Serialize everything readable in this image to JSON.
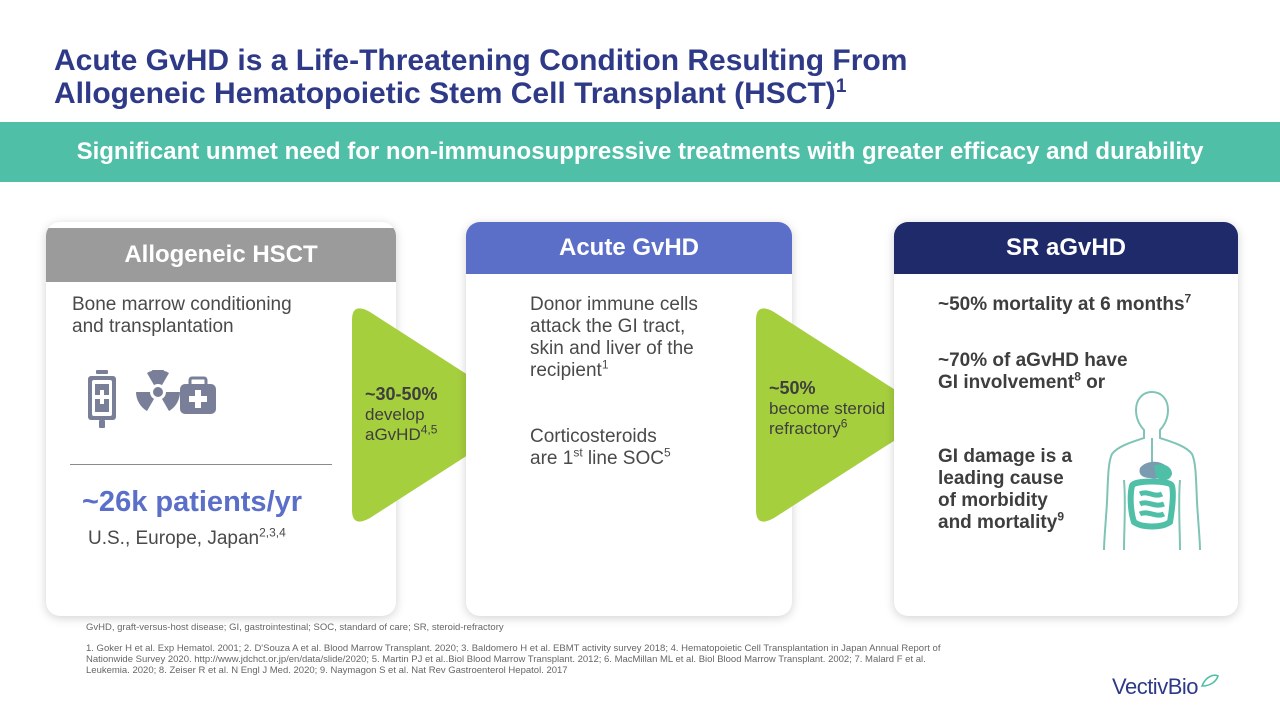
{
  "title": {
    "line1": "Acute GvHD is a Life-Threatening Condition Resulting From",
    "line2": "Allogeneic Hematopoietic Stem Cell Transplant (HSCT)",
    "line2_sup": "1"
  },
  "banner": {
    "text": "Significant unmet need for non-immunosuppressive treatments with greater efficacy and durability"
  },
  "card1": {
    "header": "Allogeneic HSCT",
    "line1": "Bone marrow conditioning",
    "line2": "and transplantation",
    "icons": [
      "iv-bag-icon",
      "radiation-icon",
      "medical-kit-icon"
    ],
    "stat": "~26k patients/yr",
    "region": "U.S., Europe, Japan",
    "region_sup": "2,3,4"
  },
  "arrow1": {
    "pct": "~30-50%",
    "line1": "develop",
    "line2": "aGvHD",
    "line2_sup": "4,5"
  },
  "card2": {
    "header": "Acute GvHD",
    "p1_line1": "Donor immune cells",
    "p1_line2": "attack the GI tract,",
    "p1_line3": "skin and liver of the",
    "p1_line4": "recipient",
    "p1_sup": "1",
    "p2_line1": "Corticosteroids",
    "p2_line2a": "are 1",
    "p2_line2_sup": "st",
    "p2_line2b": " line SOC",
    "p2_sup": "5"
  },
  "arrow2": {
    "pct": "~50%",
    "line1": "become steroid",
    "line2": "refractory",
    "line2_sup": "6"
  },
  "card3": {
    "header": "SR aGvHD",
    "s1": "~50% mortality at 6 months",
    "s1_sup": "7",
    "s2_line1": "~70% of aGvHD have",
    "s2_line2a": "GI involvement",
    "s2_line2_sup": "8",
    "s2_line2b": " or",
    "s3_line1": "GI damage is a",
    "s3_line2": "leading cause",
    "s3_line3": "of morbidity",
    "s3_line4": "and mortality",
    "s3_sup": "9"
  },
  "footnotes": {
    "abbrev": "GvHD, graft-versus-host disease; GI, gastrointestinal; SOC, standard of care; SR, steroid-refractory",
    "ref1": "1. Goker H et al. Exp Hematol. 2001; 2. D'Souza A et al. Blood Marrow Transplant. 2020; 3. Baldomero H et al. EBMT activity survey 2018; 4. Hematopoietic Cell Transplantation in Japan Annual Report of",
    "ref2": "Nationwide Survey 2020. http://www.jdchct.or.jp/en/data/slide/2020; 5. Martin PJ et al..Biol Blood Marrow Transplant. 2012; 6. MacMillan ML et al. Biol Blood Marrow Transplant. 2002; 7. Malard F et al.",
    "ref3": "Leukemia. 2020; 8. Zeiser R et al. N Engl J Med. 2020; 9. Naymagon S et al. Nat Rev Gastroenterol Hepatol. 2017"
  },
  "logo": {
    "text": "VectivBio"
  },
  "colors": {
    "title": "#2e3a87",
    "banner": "#4fbfa8",
    "arrow": "#a6cf3e",
    "card1_head": "#9b9b9b",
    "card2_head": "#5b6fc9",
    "card3_head": "#1f2a6b"
  }
}
